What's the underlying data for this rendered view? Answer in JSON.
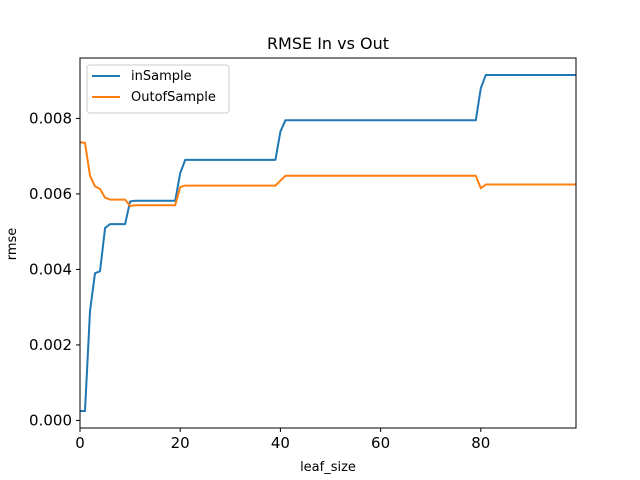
{
  "chart_data": {
    "type": "line",
    "title": "RMSE In vs Out",
    "xlabel": "leaf_size",
    "ylabel": "rmse",
    "xlim": [
      0,
      99
    ],
    "ylim": [
      -0.0002,
      0.0096
    ],
    "xticks": [
      0,
      20,
      40,
      60,
      80
    ],
    "xtick_labels": [
      "0",
      "20",
      "40",
      "60",
      "80"
    ],
    "yticks": [
      0.0,
      0.002,
      0.004,
      0.006,
      0.008
    ],
    "ytick_labels": [
      "0.000",
      "0.002",
      "0.004",
      "0.006",
      "0.008"
    ],
    "grid": false,
    "legend": "top-left",
    "series": [
      {
        "name": "inSample",
        "color": "#1f77b4",
        "points": [
          [
            0,
            0.00025
          ],
          [
            1,
            0.00025
          ],
          [
            2,
            0.0029
          ],
          [
            3,
            0.0039
          ],
          [
            4,
            0.00395
          ],
          [
            5,
            0.0051
          ],
          [
            6,
            0.0052
          ],
          [
            9,
            0.0052
          ],
          [
            10,
            0.0058
          ],
          [
            11,
            0.00582
          ],
          [
            19,
            0.00582
          ],
          [
            20,
            0.00655
          ],
          [
            21,
            0.0069
          ],
          [
            39,
            0.0069
          ],
          [
            40,
            0.00765
          ],
          [
            41,
            0.00795
          ],
          [
            79,
            0.00795
          ],
          [
            80,
            0.0088
          ],
          [
            81,
            0.00915
          ],
          [
            99,
            0.00915
          ]
        ]
      },
      {
        "name": "OutofSample",
        "color": "#ff7f0e",
        "points": [
          [
            0,
            0.00737
          ],
          [
            1,
            0.00735
          ],
          [
            2,
            0.00648
          ],
          [
            3,
            0.0062
          ],
          [
            4,
            0.00613
          ],
          [
            5,
            0.0059
          ],
          [
            6,
            0.00585
          ],
          [
            9,
            0.00585
          ],
          [
            10,
            0.00568
          ],
          [
            11,
            0.0057
          ],
          [
            19,
            0.0057
          ],
          [
            20,
            0.00618
          ],
          [
            21,
            0.00622
          ],
          [
            39,
            0.00622
          ],
          [
            41,
            0.00648
          ],
          [
            79,
            0.00648
          ],
          [
            80,
            0.00615
          ],
          [
            81,
            0.00625
          ],
          [
            99,
            0.00625
          ]
        ]
      }
    ]
  }
}
